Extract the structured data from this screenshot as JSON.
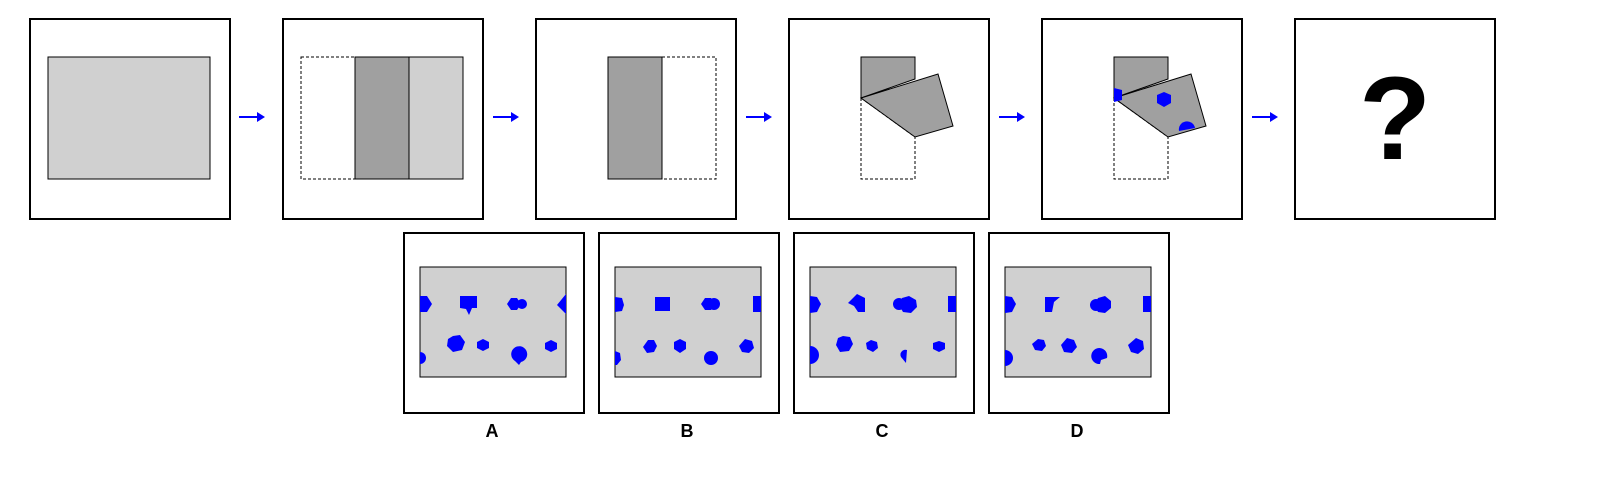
{
  "colors": {
    "paper_light": "#d0d0d0",
    "paper_dark": "#a0a0a0",
    "hole_blue": "#0000ff",
    "outline": "#000000"
  },
  "question_mark": "?",
  "options": [
    {
      "label": "A"
    },
    {
      "label": "B"
    },
    {
      "label": "C"
    },
    {
      "label": "D"
    }
  ]
}
